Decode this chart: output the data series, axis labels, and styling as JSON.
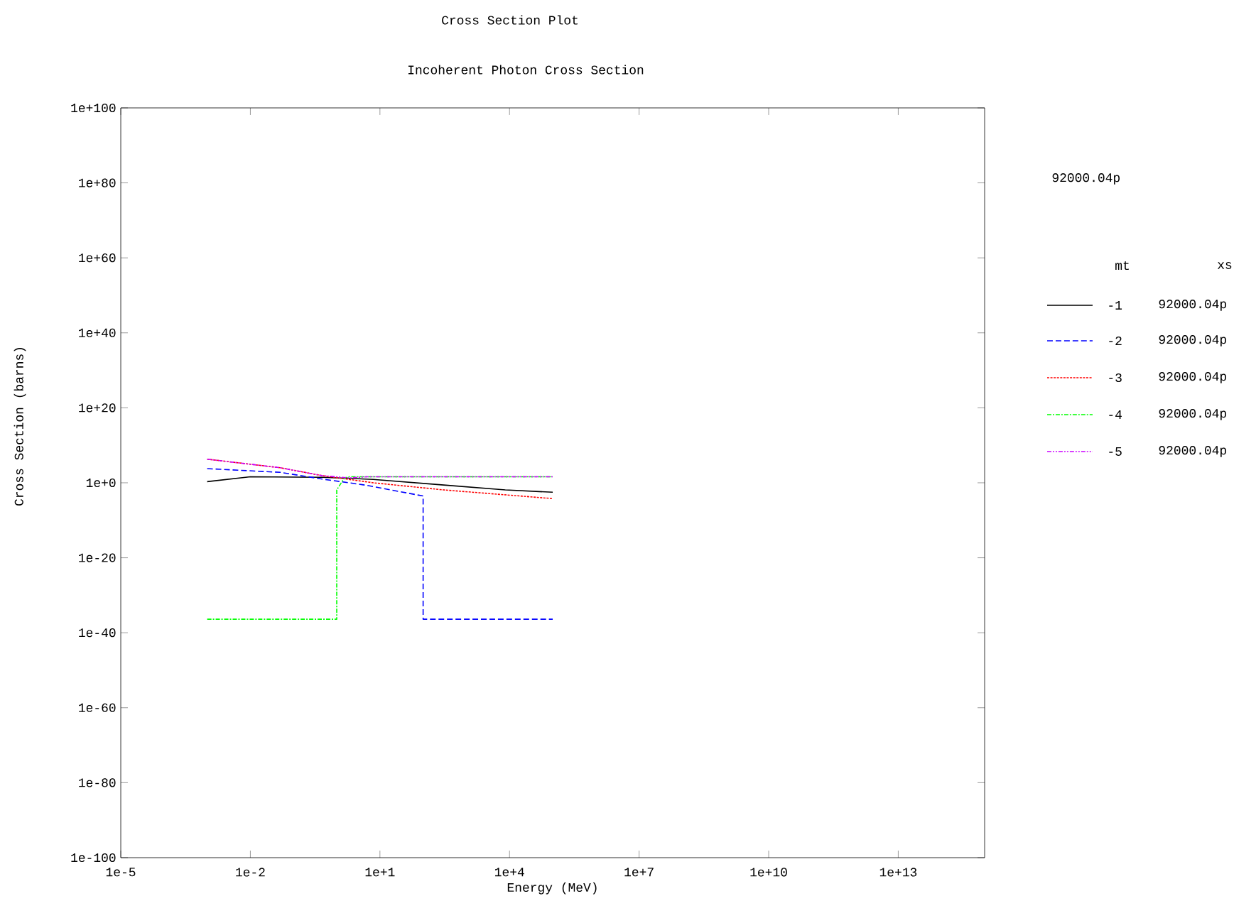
{
  "chart_data": {
    "type": "line",
    "title": "Cross Section Plot",
    "subtitle": "Incoherent Photon Cross Section",
    "xlabel": "Energy (MeV)",
    "ylabel": "Cross Section (barns)",
    "log": "xy",
    "legend": "right",
    "legend_title": "mt",
    "annotations": [
      "92000.04p",
      "xs",
      "92000.04p",
      "92000.04p",
      "92000.04p",
      "92000.04p",
      "92000.04p"
    ],
    "xlim": [
      1e-05,
      1000000000000000.0
    ],
    "ylim": [
      1e-100,
      1e+100
    ],
    "xticks": [
      {
        "value": 1e-05,
        "label": "1e-5"
      },
      {
        "value": 0.01,
        "label": "1e-2"
      },
      {
        "value": 10,
        "label": "1e+1"
      },
      {
        "value": 10000.0,
        "label": "1e+4"
      },
      {
        "value": 10000000.0,
        "label": "1e+7"
      },
      {
        "value": 10000000000.0,
        "label": "1e+10"
      },
      {
        "value": 10000000000000.0,
        "label": "1e+13"
      }
    ],
    "yticks": [
      {
        "value": 1e-100,
        "label": "1e-100"
      },
      {
        "value": 1e-80,
        "label": "1e-80"
      },
      {
        "value": 1e-60,
        "label": "1e-60"
      },
      {
        "value": 1e-40,
        "label": "1e-40"
      },
      {
        "value": 1e-20,
        "label": "1e-20"
      },
      {
        "value": 1,
        "label": "1e+0"
      },
      {
        "value": 1e+20,
        "label": "1e+20"
      },
      {
        "value": 1e+40,
        "label": "1e+40"
      },
      {
        "value": 1e+60,
        "label": "1e+60"
      },
      {
        "value": 1e+80,
        "label": "1e+80"
      },
      {
        "value": 1e+100,
        "label": "1e+100"
      }
    ],
    "series": [
      {
        "name": "-1",
        "color": "#000000",
        "line_style": "solid",
        "x": [
          0.001,
          0.01,
          0.46,
          7,
          300,
          8000,
          100000.0
        ],
        "values": [
          2,
          40,
          30,
          8,
          0.25,
          0.0125,
          0.003
        ]
      },
      {
        "name": "-2",
        "color": "#0000ff",
        "line_style": "dashed",
        "x": [
          0.001,
          0.05,
          0.46,
          4.5,
          100,
          100,
          100000.0
        ],
        "values": [
          6000,
          600,
          10,
          0.25,
          0.0003,
          4e-37,
          4e-37
        ]
      },
      {
        "name": "-3",
        "color": "#ff0000",
        "line_style": "dotted",
        "x": [
          0.001,
          0.05,
          0.46,
          7,
          300,
          100000.0
        ],
        "values": [
          2000000.0,
          10000.0,
          80,
          1,
          0.0125,
          6e-05
        ]
      },
      {
        "name": "-4",
        "color": "#00ff00",
        "line_style": "dashdot",
        "x": [
          0.001,
          1,
          1,
          1.5,
          2,
          100000.0
        ],
        "values": [
          4e-37,
          4e-37,
          0.0125,
          20,
          40,
          40
        ]
      },
      {
        "name": "-5",
        "color": "#cc00ff",
        "line_style": "dashdotdot",
        "x": [
          0.001,
          0.05,
          0.46,
          2,
          5,
          100000.0
        ],
        "values": [
          2000000.0,
          10000.0,
          80,
          20,
          40,
          40
        ]
      }
    ]
  }
}
